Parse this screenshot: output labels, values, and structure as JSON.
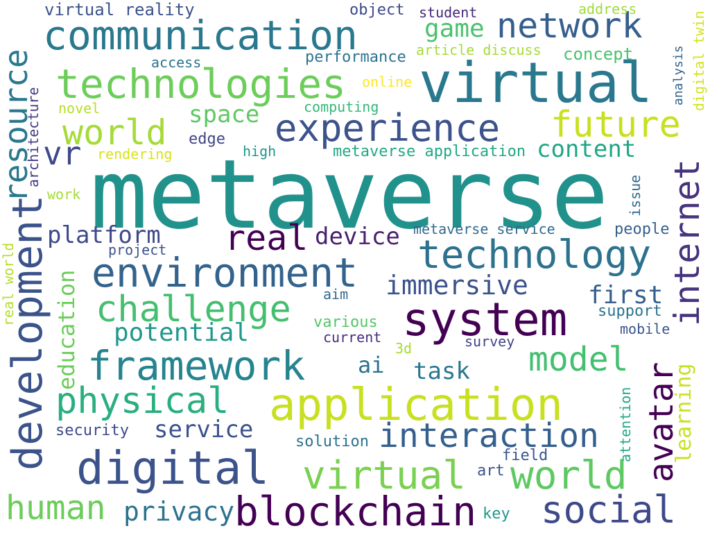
{
  "background": "#ffffff",
  "words": [
    {
      "text": "metaverse",
      "color": "#21918c"
    },
    {
      "text": "communication",
      "color": "#2a788e"
    },
    {
      "text": "virtual",
      "color": "#2a788e"
    },
    {
      "text": "network",
      "color": "#355f8d"
    },
    {
      "text": "technologies",
      "color": "#6ccd5a"
    },
    {
      "text": "experience",
      "color": "#3b528b"
    },
    {
      "text": "world",
      "color": "#a5db36"
    },
    {
      "text": "future",
      "color": "#c8e020"
    },
    {
      "text": "vr",
      "color": "#3e4989"
    },
    {
      "text": "space",
      "color": "#5ec962"
    },
    {
      "text": "edge",
      "color": "#414487"
    },
    {
      "text": "content",
      "color": "#21a685"
    },
    {
      "text": "real",
      "color": "#440154"
    },
    {
      "text": "device",
      "color": "#481f70"
    },
    {
      "text": "platform",
      "color": "#3e4989"
    },
    {
      "text": "technology",
      "color": "#2c728e"
    },
    {
      "text": "environment",
      "color": "#33638d"
    },
    {
      "text": "immersive",
      "color": "#3b528b"
    },
    {
      "text": "challenge",
      "color": "#44bf70"
    },
    {
      "text": "system",
      "color": "#440154"
    },
    {
      "text": "first",
      "color": "#355f8d"
    },
    {
      "text": "potential",
      "color": "#1f988b"
    },
    {
      "text": "framework",
      "color": "#25848e"
    },
    {
      "text": "model",
      "color": "#44bf70"
    },
    {
      "text": "ai",
      "color": "#2c728e"
    },
    {
      "text": "task",
      "color": "#2a788e"
    },
    {
      "text": "physical",
      "color": "#29af7f"
    },
    {
      "text": "application",
      "color": "#c8e020"
    },
    {
      "text": "service",
      "color": "#3b528b"
    },
    {
      "text": "interaction",
      "color": "#355f8d"
    },
    {
      "text": "digital",
      "color": "#3b528b"
    },
    {
      "text": "virtual",
      "color": "#7ad151"
    },
    {
      "text": "world",
      "color": "#5ec962"
    },
    {
      "text": "human",
      "color": "#6ccd5a"
    },
    {
      "text": "privacy",
      "color": "#2c728e"
    },
    {
      "text": "blockchain",
      "color": "#440154"
    },
    {
      "text": "social",
      "color": "#3e4989"
    },
    {
      "text": "internet",
      "color": "#46337e"
    },
    {
      "text": "avatar",
      "color": "#440154"
    },
    {
      "text": "development",
      "color": "#3b528b"
    },
    {
      "text": "resource",
      "color": "#2a788e"
    },
    {
      "text": "education",
      "color": "#6ccd5a"
    },
    {
      "text": "learning",
      "color": "#c8e020"
    },
    {
      "text": "virtual reality",
      "color": "#3b528b"
    },
    {
      "text": "object",
      "color": "#3e4989"
    },
    {
      "text": "student",
      "color": "#482878"
    },
    {
      "text": "address",
      "color": "#9fda3a"
    },
    {
      "text": "digital twin",
      "color": "#d2e21b"
    },
    {
      "text": "game",
      "color": "#4ac16d"
    },
    {
      "text": "article discuss",
      "color": "#a5db36"
    },
    {
      "text": "concept",
      "color": "#4ac16d"
    },
    {
      "text": "access",
      "color": "#2c728e"
    },
    {
      "text": "performance",
      "color": "#2c728e"
    },
    {
      "text": "online",
      "color": "#fde725"
    },
    {
      "text": "novel",
      "color": "#b5de2b"
    },
    {
      "text": "computing",
      "color": "#35b779"
    },
    {
      "text": "analysis",
      "color": "#33638d"
    },
    {
      "text": "architecture",
      "color": "#433e85"
    },
    {
      "text": "rendering",
      "color": "#d8e219"
    },
    {
      "text": "high",
      "color": "#1f988b"
    },
    {
      "text": "metaverse application",
      "color": "#22a884"
    },
    {
      "text": "work",
      "color": "#a5db36"
    },
    {
      "text": "issue",
      "color": "#31688e"
    },
    {
      "text": "metaverse service",
      "color": "#31688e"
    },
    {
      "text": "people",
      "color": "#355f8d"
    },
    {
      "text": "project",
      "color": "#3b528b"
    },
    {
      "text": "real world",
      "color": "#b5de2b"
    },
    {
      "text": "aim",
      "color": "#31688e"
    },
    {
      "text": "support",
      "color": "#2c728e"
    },
    {
      "text": "various",
      "color": "#54c568"
    },
    {
      "text": "mobile",
      "color": "#39568c"
    },
    {
      "text": "current",
      "color": "#472d7b"
    },
    {
      "text": "3d",
      "color": "#a5db36"
    },
    {
      "text": "survey",
      "color": "#414487"
    },
    {
      "text": "attention",
      "color": "#22a884"
    },
    {
      "text": "security",
      "color": "#3e4989"
    },
    {
      "text": "solution",
      "color": "#2c728e"
    },
    {
      "text": "field",
      "color": "#39568c"
    },
    {
      "text": "art",
      "color": "#3b528b"
    },
    {
      "text": "key",
      "color": "#1f988b"
    }
  ]
}
